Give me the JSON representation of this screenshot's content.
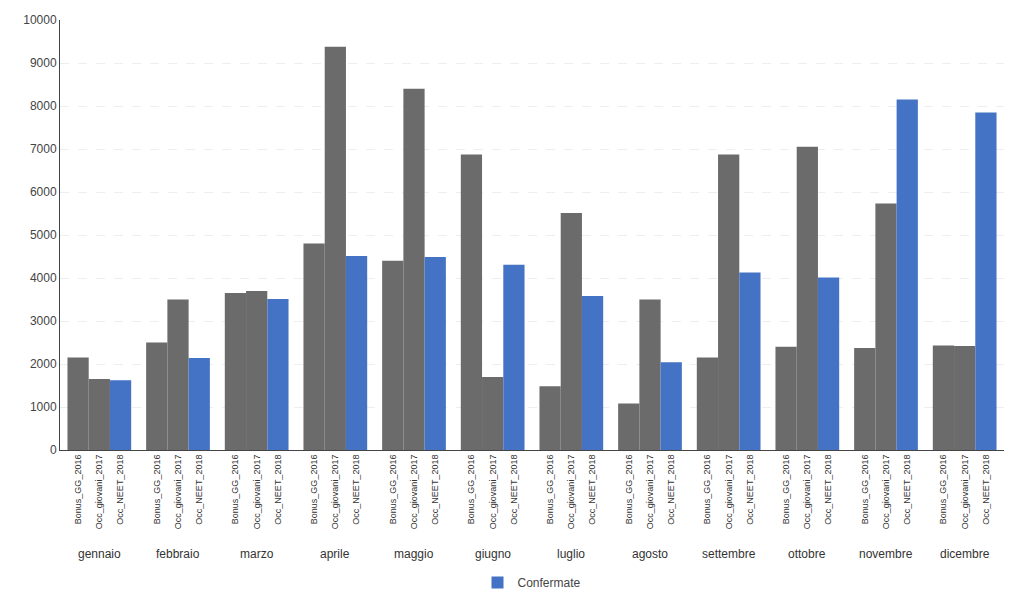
{
  "chart_data": {
    "type": "bar",
    "categories": [
      "gennaio",
      "febbraio",
      "marzo",
      "aprile",
      "maggio",
      "giugno",
      "luglio",
      "agosto",
      "settembre",
      "ottobre",
      "novembre",
      "dicembre"
    ],
    "series": [
      {
        "name": "Bonus_GG_2016",
        "color": "#6b6b6b",
        "values": [
          2150,
          2500,
          3650,
          4800,
          4400,
          6870,
          1480,
          1080,
          2150,
          2400,
          2370,
          2430
        ]
      },
      {
        "name": "Occ_giovani_2017",
        "color": "#6b6b6b",
        "values": [
          1650,
          3500,
          3700,
          9380,
          8400,
          1700,
          5510,
          3500,
          6870,
          7050,
          5730,
          2420
        ]
      },
      {
        "name": "Occ_NEET_2018",
        "color": "#4472c4",
        "values": [
          1620,
          2140,
          3510,
          4510,
          4490,
          4310,
          3580,
          2040,
          4130,
          4010,
          8150,
          7850
        ]
      }
    ],
    "ylim": [
      0,
      10000
    ],
    "yticks": [
      0,
      1000,
      2000,
      3000,
      4000,
      5000,
      6000,
      7000,
      8000,
      9000,
      10000
    ],
    "grid": true,
    "legend": "bottom",
    "legend_label": "Confermate",
    "legend_color": "#4472c4"
  }
}
